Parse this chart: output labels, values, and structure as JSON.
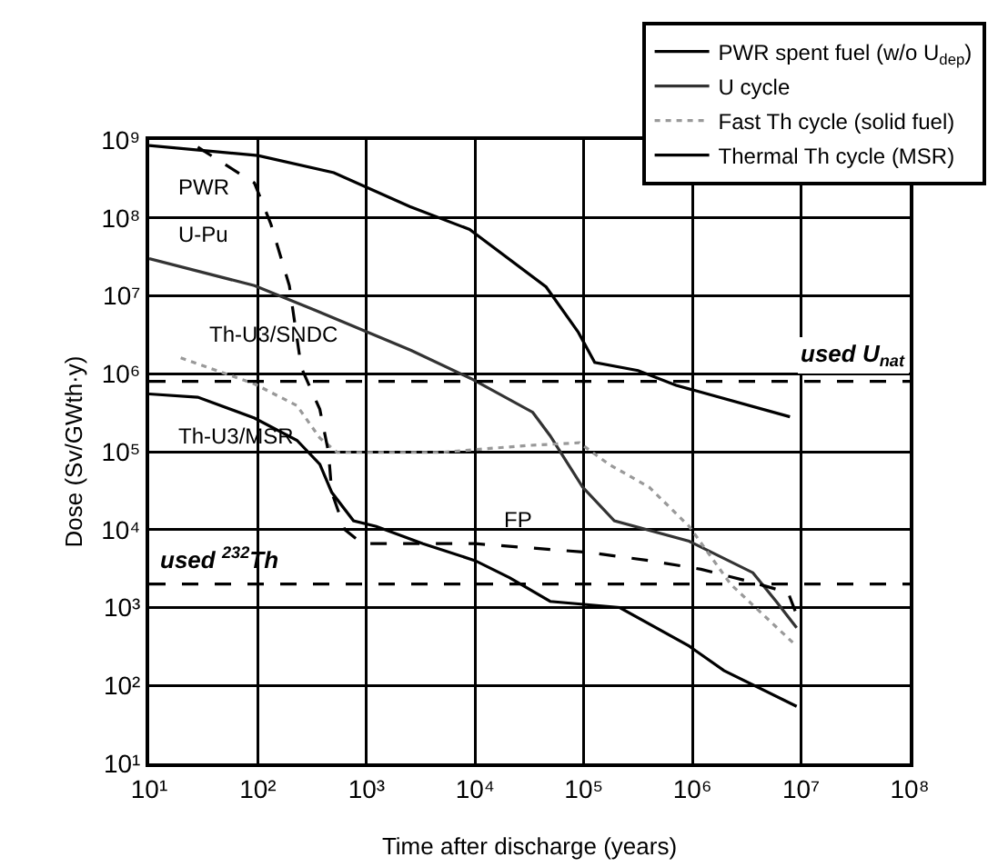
{
  "chart_data": {
    "type": "line",
    "xlabel": "Time after discharge (years)",
    "ylabel": "Dose (Sv/GWth·y)",
    "log": "xy",
    "xlim": [
      10,
      100000000
    ],
    "ylim": [
      10,
      1000000000
    ],
    "xticks": [
      {
        "value": 10,
        "label": "10¹"
      },
      {
        "value": 100,
        "label": "10²"
      },
      {
        "value": 1000,
        "label": "10³"
      },
      {
        "value": 10000,
        "label": "10⁴"
      },
      {
        "value": 100000,
        "label": "10⁵"
      },
      {
        "value": 1000000,
        "label": "10⁶"
      },
      {
        "value": 10000000,
        "label": "10⁷"
      },
      {
        "value": 100000000,
        "label": "10⁸"
      }
    ],
    "yticks": [
      {
        "value": 10,
        "label": "10¹"
      },
      {
        "value": 100,
        "label": "10²"
      },
      {
        "value": 1000,
        "label": "10³"
      },
      {
        "value": 10000,
        "label": "10⁴"
      },
      {
        "value": 100000,
        "label": "10⁵"
      },
      {
        "value": 1000000,
        "label": "10⁶"
      },
      {
        "value": 10000000,
        "label": "10⁷"
      },
      {
        "value": 100000000,
        "label": "10⁸"
      },
      {
        "value": 1000000000,
        "label": "10⁹"
      }
    ],
    "grid": true,
    "legend": "top right",
    "series": [
      {
        "name": "PWR spent fuel (w/o U$_{dep}$)",
        "color": "#000000",
        "line_style": "solid",
        "x": [
          10,
          100,
          500,
          2500,
          8900,
          45000,
          89000,
          126000,
          316000,
          708000,
          7900000
        ],
        "values": [
          850000000,
          630000000,
          380000000,
          140000000,
          71000000,
          13000000,
          3400000,
          1400000,
          1100000,
          710000,
          280000
        ]
      },
      {
        "name": "U cycle",
        "color": "#333333",
        "line_style": "solid",
        "x": [
          10,
          93,
          331,
          2570,
          9120,
          33900,
          49000,
          97700,
          191000,
          933000,
          3600000,
          5900000,
          9100000
        ],
        "values": [
          30000000,
          13500000,
          6600000,
          2000000,
          870000,
          320000,
          160000,
          35000,
          13000,
          7100,
          2800,
          1200,
          550
        ]
      },
      {
        "name": "Fast Th cycle (solid fuel)",
        "color": "#999999",
        "line_style": "dotted",
        "x": [
          19.5,
          93,
          229,
          372,
          537,
          4800,
          30000,
          91000,
          170000,
          400000,
          933000,
          2240000,
          9100000
        ],
        "values": [
          1600000,
          740000,
          390000,
          150000,
          98000,
          98000,
          120000,
          130000,
          69000,
          35000,
          11000,
          2000,
          320
        ]
      },
      {
        "name": "Thermal Th cycle (MSR)",
        "color": "#000000",
        "line_style": "solid",
        "x": [
          10,
          28,
          93,
          229,
          372,
          479,
          759,
          1230,
          3310,
          10000,
          20900,
          49000,
          214000,
          933000,
          1950000,
          9100000
        ],
        "values": [
          550000,
          500000,
          270000,
          140000,
          69000,
          30000,
          13000,
          11000,
          6600,
          4000,
          2400,
          1200,
          1000,
          320,
          155,
          54
        ]
      },
      {
        "color": "#000000",
        "line_style": "dashed",
        "x": [
          28,
          93,
          132,
          195,
          251,
          372,
          447,
          479,
          631,
          912,
          10000,
          110000,
          400000,
          1200000,
          3600000,
          7600000,
          9800000
        ],
        "values": [
          810000000,
          280000000,
          83000000,
          13500000,
          1200000,
          350000,
          98000,
          30000,
          10000,
          6600,
          6600,
          5100,
          4000,
          3100,
          2100,
          1550,
          620
        ]
      }
    ],
    "ref_lines": [
      {
        "axis": "y",
        "value": 800000,
        "label": "used U$_{nat}$",
        "color": "#000000",
        "line_style": "dashed"
      },
      {
        "axis": "y",
        "value": 2000,
        "label": "used $^{232}$Th",
        "color": "#000000",
        "line_style": "dashed"
      }
    ],
    "annotations": [
      {
        "text": "PWR",
        "x": 10,
        "y": 850000000
      },
      {
        "text": "U-Pu",
        "x": 10,
        "y": 30000000
      },
      {
        "text": "Th-U3/SNDC",
        "x": 19.5,
        "y": 1600000
      },
      {
        "text": "Th-U3/MSR",
        "x": 10,
        "y": 550000
      },
      {
        "text": "FP",
        "x": 10000,
        "y": 6600
      }
    ]
  }
}
